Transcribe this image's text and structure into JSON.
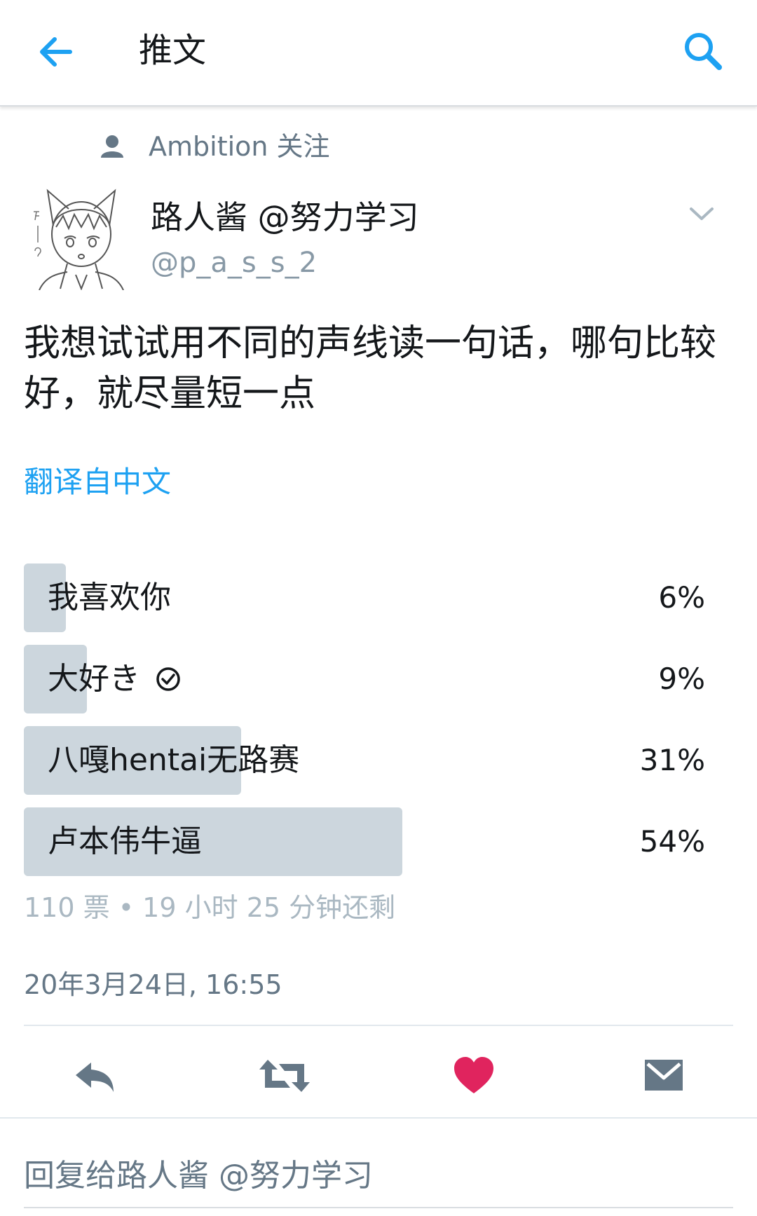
{
  "header": {
    "title": "推文",
    "back_icon": "back-arrow-icon",
    "search_icon": "search-icon",
    "accent": "#1da1f2"
  },
  "context": {
    "text": "Ambition 关注"
  },
  "author": {
    "display_name": "路人酱 @努力学习",
    "handle": "@p_a_s_s_2"
  },
  "tweet": {
    "text": "我想试试用不同的声线读一句话，哪句比较好，就尽量短一点",
    "translate_label": "翻译自中文"
  },
  "poll": {
    "options": [
      {
        "label": "我喜欢你",
        "percent_label": "6%",
        "percent": 6,
        "voted": false
      },
      {
        "label": "大好き",
        "percent_label": "9%",
        "percent": 9,
        "voted": true
      },
      {
        "label": "八嘎hentai无路赛",
        "percent_label": "31%",
        "percent": 31,
        "voted": false
      },
      {
        "label": "卢本伟牛逼",
        "percent_label": "54%",
        "percent": 54,
        "voted": false
      }
    ],
    "meta": "110 票 • 19 小时 25 分钟还剩"
  },
  "timestamp": "20年3月24日, 16:55",
  "actions": {
    "like_color": "#e0245e",
    "icon_color": "#657786"
  },
  "reply": {
    "placeholder": "回复给路人酱 @努力学习"
  }
}
